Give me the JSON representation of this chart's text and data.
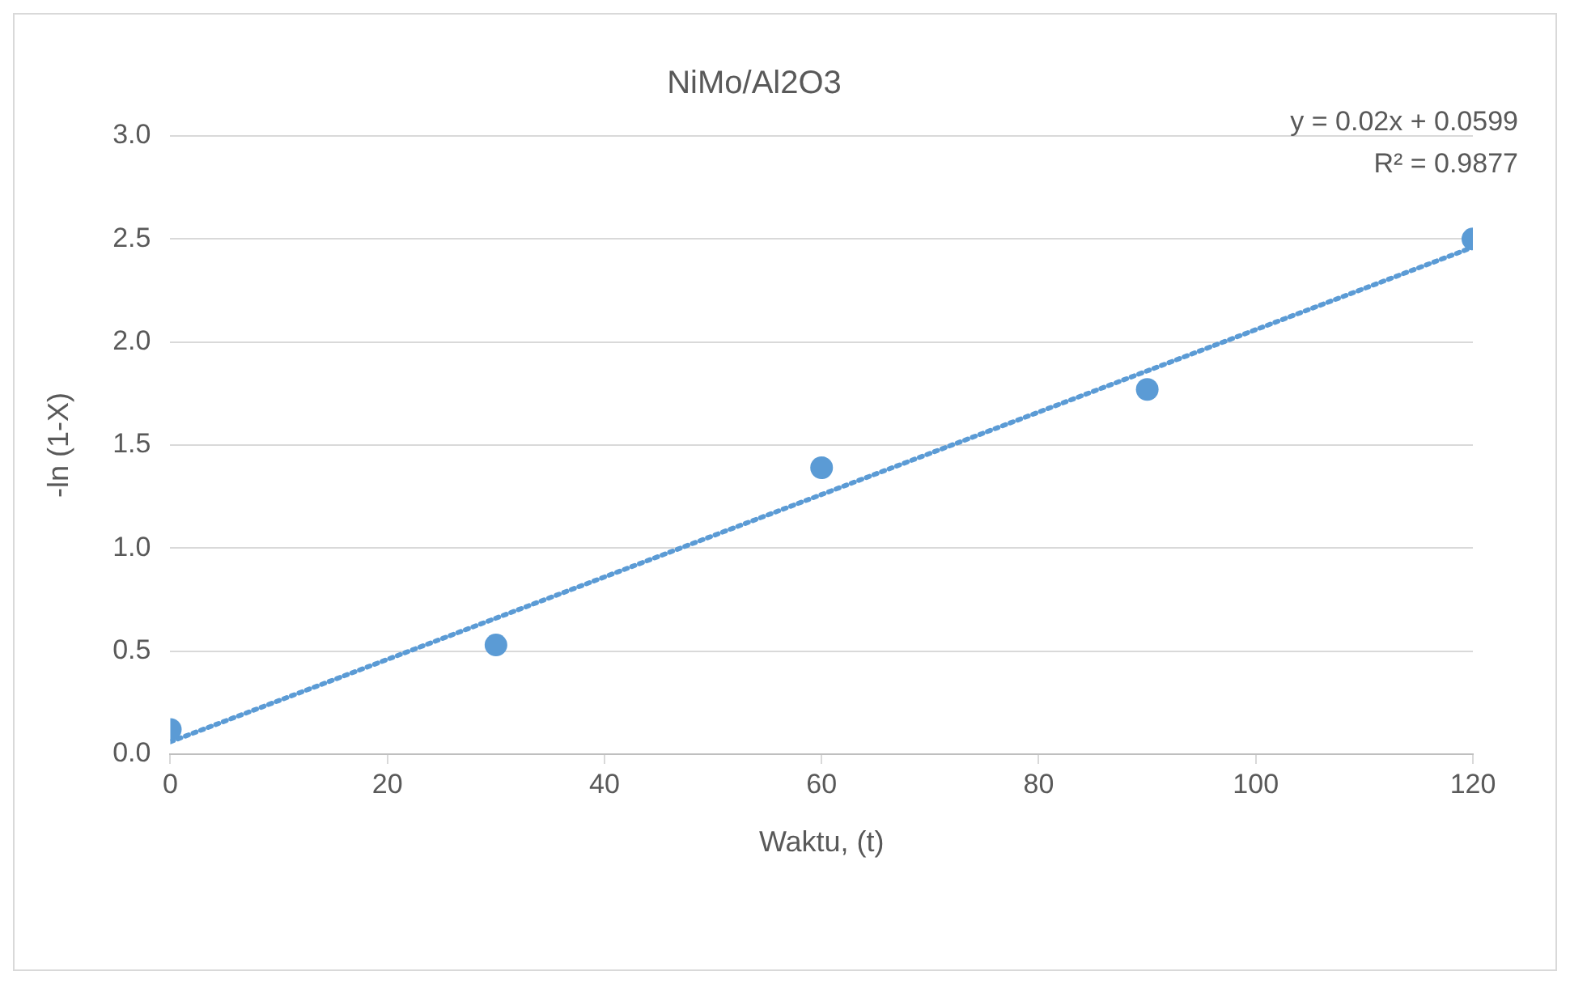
{
  "chart_data": {
    "type": "scatter",
    "title": "NiMo/Al2O3",
    "xlabel": "Waktu, (t)",
    "ylabel": "-ln (1-X)",
    "x": [
      0,
      30,
      60,
      90,
      120
    ],
    "series": [
      {
        "color": "#5b9bd5",
        "values": [
          0.12,
          0.53,
          1.39,
          1.77,
          2.5
        ],
        "marker": "circle"
      },
      {
        "type": "line",
        "color": "#5b9bd5",
        "x": [
          0,
          120
        ],
        "values": [
          0.06,
          2.46
        ],
        "line_style": "dotted",
        "marker": "none"
      }
    ],
    "xlim": [
      0,
      120
    ],
    "xticks": [
      0,
      20,
      40,
      60,
      80,
      100,
      120
    ],
    "ylim": [
      0,
      3
    ],
    "yticks": [
      {
        "value": 0,
        "label": "0.0"
      },
      {
        "value": 0.5,
        "label": "0.5"
      },
      {
        "value": 1,
        "label": "1.0"
      },
      {
        "value": 1.5,
        "label": "1.5"
      },
      {
        "value": 2,
        "label": "2.0"
      },
      {
        "value": 2.5,
        "label": "2.5"
      },
      {
        "value": 3,
        "label": "3.0"
      }
    ],
    "grid": "y",
    "legend": false,
    "annotations": [
      "y = 0.02x + 0.0599",
      "R² = 0.9877"
    ]
  }
}
